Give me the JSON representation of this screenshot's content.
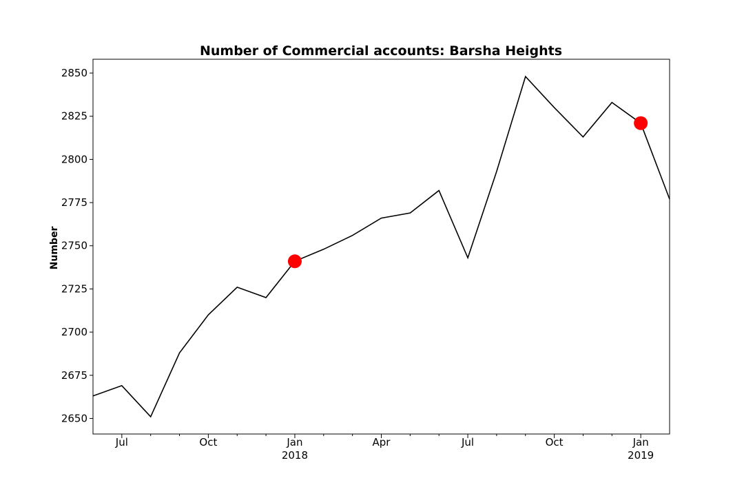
{
  "chart_data": {
    "type": "line",
    "title": "Number of Commercial accounts: Barsha Heights",
    "xlabel": "",
    "ylabel": "Number",
    "ylim": [
      2641,
      2858
    ],
    "xlim": [
      "2017-06-01",
      "2019-02-01"
    ],
    "y_ticks": [
      2650,
      2675,
      2700,
      2725,
      2750,
      2775,
      2800,
      2825,
      2850
    ],
    "x_ticks": [
      {
        "date": "2017-07-01",
        "label": "Jul",
        "sublabel": ""
      },
      {
        "date": "2017-10-01",
        "label": "Oct",
        "sublabel": ""
      },
      {
        "date": "2018-01-01",
        "label": "Jan",
        "sublabel": "2018"
      },
      {
        "date": "2018-04-01",
        "label": "Apr",
        "sublabel": ""
      },
      {
        "date": "2018-07-01",
        "label": "Jul",
        "sublabel": ""
      },
      {
        "date": "2018-10-01",
        "label": "Oct",
        "sublabel": ""
      },
      {
        "date": "2019-01-01",
        "label": "Jan",
        "sublabel": "2019"
      }
    ],
    "x_minor_ticks": [
      "2017-08-01",
      "2017-09-01",
      "2017-11-01",
      "2017-12-01",
      "2018-02-01",
      "2018-03-01",
      "2018-05-01",
      "2018-06-01",
      "2018-08-01",
      "2018-09-01",
      "2018-11-01",
      "2018-12-01"
    ],
    "grid": false,
    "series": [
      {
        "color": "#000000",
        "x": [
          "2017-06-01",
          "2017-07-01",
          "2017-08-01",
          "2017-09-01",
          "2017-10-01",
          "2017-11-01",
          "2017-12-01",
          "2018-01-01",
          "2018-02-01",
          "2018-03-01",
          "2018-04-01",
          "2018-05-01",
          "2018-06-01",
          "2018-07-01",
          "2018-08-01",
          "2018-09-01",
          "2018-10-01",
          "2018-11-01",
          "2018-12-01",
          "2019-01-01",
          "2019-02-01"
        ],
        "values": [
          2663,
          2669,
          2651,
          2688,
          2710,
          2726,
          2720,
          2741,
          2748,
          2756,
          2766,
          2769,
          2782,
          2743,
          2793,
          2848,
          2830,
          2813,
          2833,
          2821,
          2777
        ]
      }
    ],
    "highlights": {
      "color": "#ff0000",
      "points": [
        {
          "x": "2018-01-01",
          "y": 2741
        },
        {
          "x": "2019-01-01",
          "y": 2821
        }
      ]
    }
  }
}
